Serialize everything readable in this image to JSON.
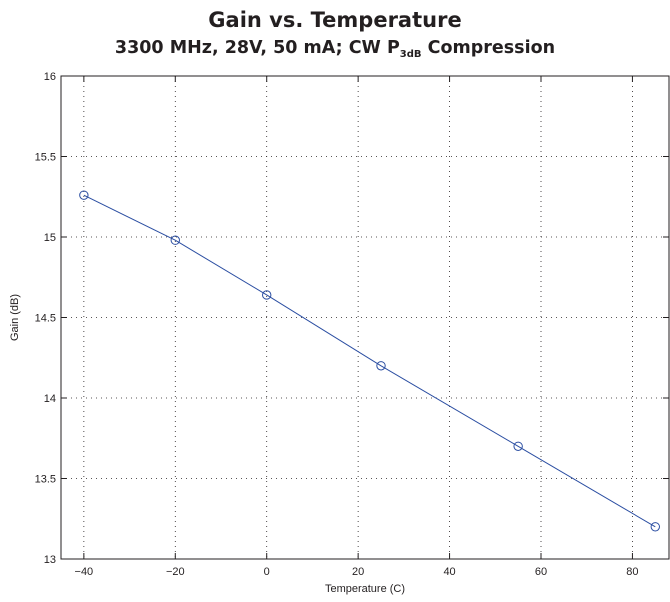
{
  "chart_data": {
    "type": "line",
    "title": "Gain vs. Temperature",
    "subtitle_main": "3300 MHz, 28V, 50 mA; CW P",
    "subtitle_sub": "3dB",
    "subtitle_tail": " Compression",
    "xlabel": "Temperature (C)",
    "ylabel": "Gain (dB)",
    "xlim": [
      -45,
      88
    ],
    "ylim": [
      13,
      16
    ],
    "xticks": [
      -40,
      -20,
      0,
      20,
      40,
      60,
      80
    ],
    "xtick_labels": [
      "−40",
      "−20",
      "0",
      "20",
      "40",
      "60",
      "80"
    ],
    "yticks": [
      13,
      13.5,
      14,
      14.5,
      15,
      15.5,
      16
    ],
    "ytick_labels": [
      "13",
      "13.5",
      "14",
      "14.5",
      "15",
      "15.5",
      "16"
    ],
    "grid": true,
    "series": [
      {
        "x": [
          -40,
          -20,
          0,
          25,
          55,
          85
        ],
        "y": [
          15.26,
          14.98,
          14.64,
          14.2,
          13.7,
          13.2
        ],
        "color": "#2b4ea2",
        "marker": "circle"
      }
    ]
  }
}
